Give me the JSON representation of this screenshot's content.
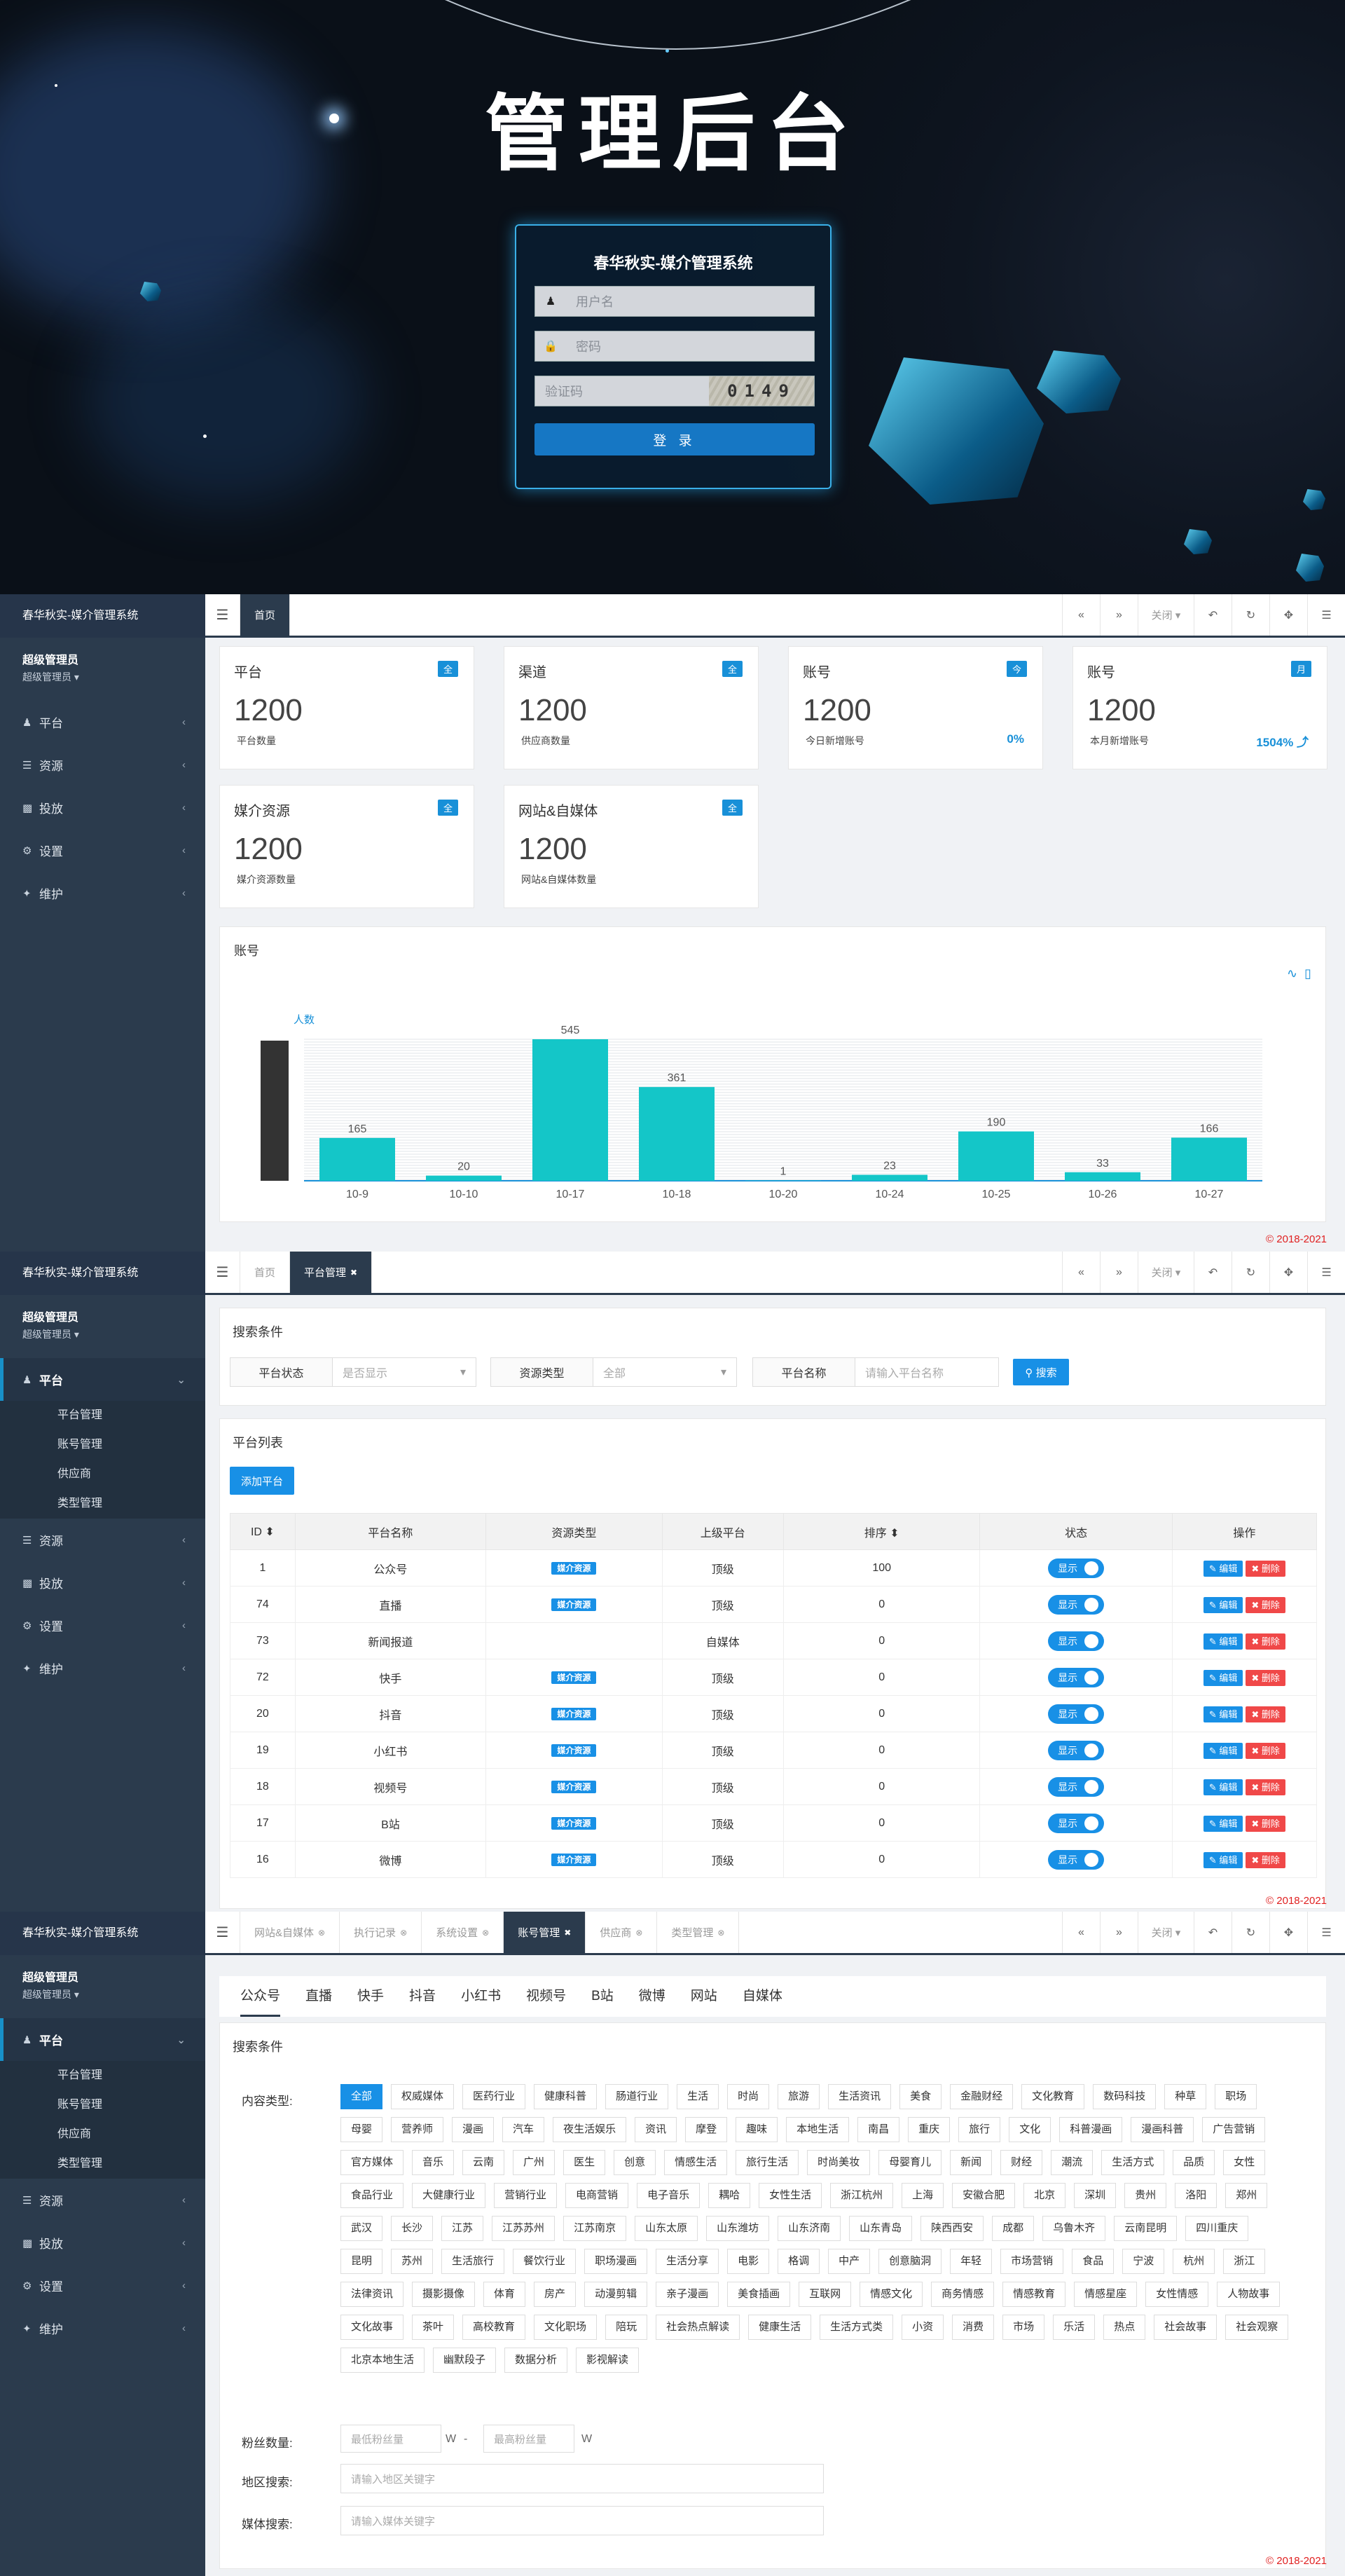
{
  "login": {
    "title": "管理后台",
    "box_title": "春华秋实-媒介管理系统",
    "username_placeholder": "用户名",
    "password_placeholder": "密码",
    "captcha_placeholder": "验证码",
    "captcha_text": "0149",
    "submit": "登 录"
  },
  "app": {
    "brand": "春华秋实-媒介管理系统",
    "user_name": "超级管理员",
    "user_role": "超级管理员 ▾",
    "close_menu": "关闭 ▾",
    "footer": "© 2018-2021"
  },
  "sidebar": {
    "items": [
      "平台",
      "资源",
      "投放",
      "设置",
      "维护"
    ],
    "sub_platform": [
      "平台管理",
      "账号管理",
      "供应商",
      "类型管理"
    ]
  },
  "screen2": {
    "tabs": [
      "首页"
    ]
  },
  "dashboard": {
    "cards": [
      {
        "title": "平台",
        "badge": "全",
        "value": "1200",
        "label": "平台数量",
        "pct": ""
      },
      {
        "title": "渠道",
        "badge": "全",
        "value": "1200",
        "label": "供应商数量",
        "pct": ""
      },
      {
        "title": "账号",
        "badge": "今",
        "value": "1200",
        "label": "今日新增账号",
        "pct": "0%"
      },
      {
        "title": "账号",
        "badge": "月",
        "value": "1200",
        "label": "本月新增账号",
        "pct": "1504% ⤴"
      },
      {
        "title": "媒介资源",
        "badge": "全",
        "value": "1200",
        "label": "媒介资源数量",
        "pct": ""
      },
      {
        "title": "网站&自媒体",
        "badge": "全",
        "value": "1200",
        "label": "网站&自媒体数量",
        "pct": ""
      }
    ]
  },
  "chart_data": {
    "type": "bar",
    "title": "账号",
    "ylabel": "人数",
    "categories": [
      "10-9",
      "10-10",
      "10-17",
      "10-18",
      "10-20",
      "10-24",
      "10-25",
      "10-26",
      "10-27"
    ],
    "values": [
      165,
      20,
      545,
      361,
      1,
      23,
      190,
      33,
      166
    ],
    "ylim": [
      0,
      545
    ],
    "color": "#14c6c8",
    "grid": true
  },
  "screen3": {
    "tabs": [
      "首页",
      "平台管理"
    ],
    "search_title": "搜索条件",
    "f_status_label": "平台状态",
    "f_status_value": "是否显示",
    "f_type_label": "资源类型",
    "f_type_value": "全部",
    "f_name_label": "平台名称",
    "f_name_placeholder": "请输入平台名称",
    "search_btn": "⚲ 搜索",
    "list_title": "平台列表",
    "add_btn": "添加平台",
    "cols": [
      "ID ⬍",
      "平台名称",
      "资源类型",
      "上级平台",
      "排序 ⬍",
      "状态",
      "操作"
    ],
    "rows": [
      {
        "id": "1",
        "name": "公众号",
        "type": "媒介资源",
        "parent": "顶级",
        "sort": "100"
      },
      {
        "id": "74",
        "name": "直播",
        "type": "媒介资源",
        "parent": "顶级",
        "sort": "0"
      },
      {
        "id": "73",
        "name": "新闻报道",
        "type": "",
        "parent": "自媒体",
        "sort": "0"
      },
      {
        "id": "72",
        "name": "快手",
        "type": "媒介资源",
        "parent": "顶级",
        "sort": "0"
      },
      {
        "id": "20",
        "name": "抖音",
        "type": "媒介资源",
        "parent": "顶级",
        "sort": "0"
      },
      {
        "id": "19",
        "name": "小红书",
        "type": "媒介资源",
        "parent": "顶级",
        "sort": "0"
      },
      {
        "id": "18",
        "name": "视频号",
        "type": "媒介资源",
        "parent": "顶级",
        "sort": "0"
      },
      {
        "id": "17",
        "name": "B站",
        "type": "媒介资源",
        "parent": "顶级",
        "sort": "0"
      },
      {
        "id": "16",
        "name": "微博",
        "type": "媒介资源",
        "parent": "顶级",
        "sort": "0"
      }
    ],
    "status_label": "显示",
    "edit_label": "✎ 编辑",
    "delete_label": "✖ 删除"
  },
  "screen4": {
    "tabs": [
      "网站&自媒体",
      "执行记录",
      "系统设置",
      "账号管理",
      "供应商",
      "类型管理"
    ],
    "active_tab": 3,
    "content_tabs": [
      "公众号",
      "直播",
      "快手",
      "抖音",
      "小红书",
      "视频号",
      "B站",
      "微博",
      "网站",
      "自媒体"
    ],
    "search_title": "搜索条件",
    "content_type_label": "内容类型:",
    "content_types": [
      "全部",
      "权威媒体",
      "医药行业",
      "健康科普",
      "肠道行业",
      "生活",
      "时尚",
      "旅游",
      "生活资讯",
      "美食",
      "金融财经",
      "文化教育",
      "数码科技",
      "种草",
      "职场",
      "母婴",
      "营养师",
      "漫画",
      "汽车",
      "夜生活娱乐",
      "资讯",
      "摩登",
      "趣味",
      "本地生活",
      "南昌",
      "重庆",
      "旅行",
      "文化",
      "科普漫画",
      "漫画科普",
      "广告营销",
      "官方媒体",
      "音乐",
      "云南",
      "广州",
      "医生",
      "创意",
      "情感生活",
      "旅行生活",
      "时尚美妆",
      "母婴育儿",
      "新闻",
      "财经",
      "潮流",
      "生活方式",
      "品质",
      "女性",
      "食品行业",
      "大健康行业",
      "营销行业",
      "电商营销",
      "电子音乐",
      "耦哈",
      "女性生活",
      "浙江杭州",
      "上海",
      "安徽合肥",
      "北京",
      "深圳",
      "贵州",
      "洛阳",
      "郑州",
      "武汉",
      "长沙",
      "江苏",
      "江苏苏州",
      "江苏南京",
      "山东太原",
      "山东潍坊",
      "山东济南",
      "山东青岛",
      "陕西西安",
      "成都",
      "乌鲁木齐",
      "云南昆明",
      "四川重庆",
      "昆明",
      "苏州",
      "生活旅行",
      "餐饮行业",
      "职场漫画",
      "生活分享",
      "电影",
      "格调",
      "中产",
      "创意脑洞",
      "年轻",
      "市场营销",
      "食品",
      "宁波",
      "杭州",
      "浙江",
      "法律资讯",
      "摄影摄像",
      "体育",
      "房产",
      "动漫剪辑",
      "亲子漫画",
      "美食插画",
      "互联网",
      "情感文化",
      "商务情感",
      "情感教育",
      "情感星座",
      "女性情感",
      "人物故事",
      "文化故事",
      "茶叶",
      "高校教育",
      "文化职场",
      "陪玩",
      "社会热点解读",
      "健康生活",
      "生活方式类",
      "小资",
      "消费",
      "市场",
      "乐活",
      "热点",
      "社会故事",
      "社会观察",
      "北京本地生活",
      "幽默段子",
      "数据分析",
      "影视解读"
    ],
    "fans_label": "粉丝数量:",
    "fans_min": "最低粉丝量",
    "fans_max": "最高粉丝量",
    "unit": "W",
    "dash": "-",
    "region_label": "地区搜索:",
    "region_placeholder": "请输入地区关键字",
    "media_label": "媒体搜索:",
    "media_placeholder": "请输入媒体关键字"
  }
}
